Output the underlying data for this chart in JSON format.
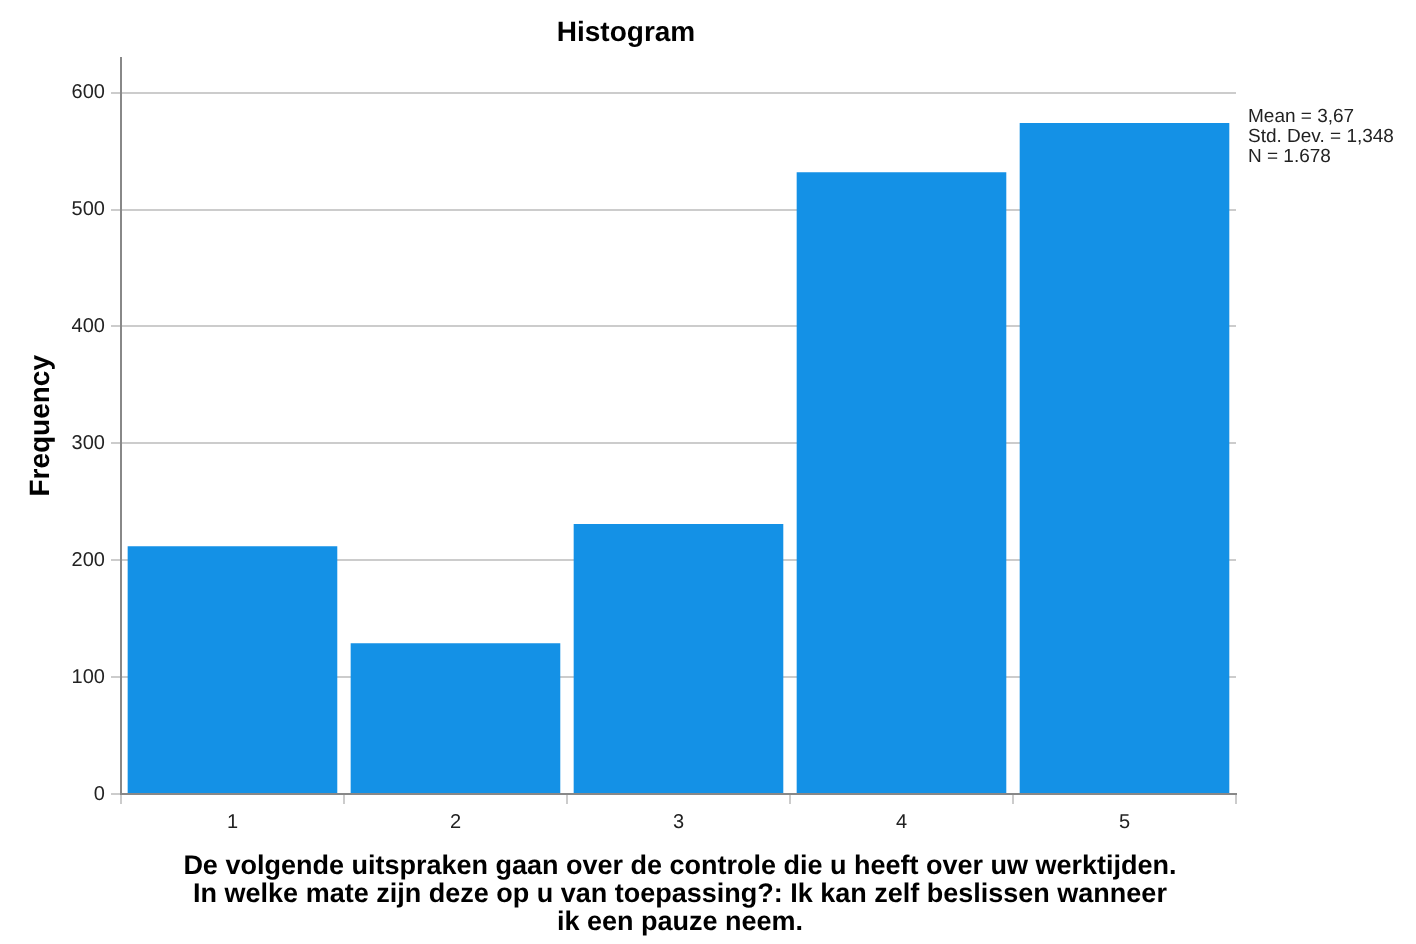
{
  "chart_data": {
    "type": "histogram",
    "title": "Histogram",
    "xlabel": "De volgende uitspraken gaan over de controle die u heeft over uw werktijden. In welke mate zijn deze op u van toepassing?: Ik kan zelf beslissen wanneer ik een pauze neem.",
    "ylabel": "Frequency",
    "bins": [
      0.5,
      1.5,
      2.5,
      3.5,
      4.5,
      5.5
    ],
    "values": [
      212,
      129,
      231,
      532,
      574
    ],
    "color": "#1491e6",
    "xlim": [
      0.5,
      5.5
    ],
    "xticks": [
      1,
      2,
      3,
      4,
      5
    ],
    "ylim": [
      0,
      630
    ],
    "yticks": [
      0,
      100,
      200,
      300,
      400,
      500,
      600
    ],
    "grid": "y",
    "legend": false,
    "annotations": [
      "Mean = 3,67",
      "Std. Dev. = 1,348",
      "N = 1.678"
    ]
  }
}
